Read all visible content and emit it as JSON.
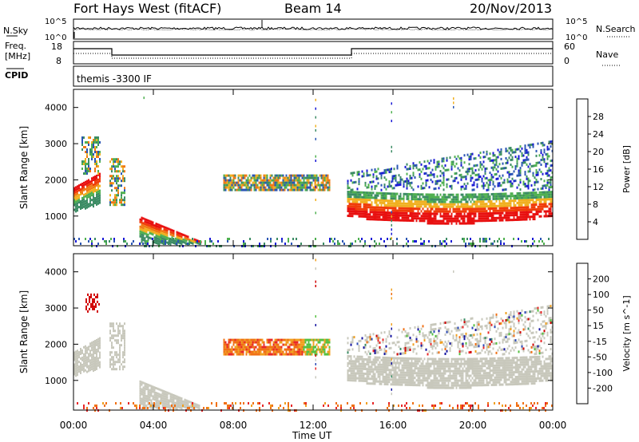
{
  "header": {
    "station": "Fort Hays West (fitACF)",
    "beam": "Beam 14",
    "date": "20/Nov/2013"
  },
  "panels": {
    "nsky": {
      "left_label": "N.Sky",
      "right_label": "N.Search",
      "tick_top": "10^5",
      "tick_bottom": "10^0"
    },
    "freq": {
      "left_label_1": "Freq.",
      "left_label_2": "[MHz]",
      "right_label": "Nave",
      "left_ticks": [
        "18",
        "8"
      ],
      "right_ticks": [
        "60",
        "0"
      ]
    },
    "cpid": {
      "label": "CPID",
      "program": "themis -3300 IF"
    }
  },
  "colors": {
    "power": [
      "#1a1ad6",
      "#2a55b4",
      "#3c8c64",
      "#4fb050",
      "#f0b020",
      "#f07a14",
      "#f03c0a",
      "#e81010"
    ],
    "velocity": [
      "#1414a0",
      "#2c4ab6",
      "#3c8c64",
      "#55c040",
      "#c8c8bc",
      "#f0a020",
      "#f07014",
      "#e82828",
      "#d00000"
    ]
  },
  "chart_data": [
    {
      "type": "heatmap",
      "title": "Power",
      "xlabel": "Time UT",
      "ylabel": "Slant Range [km]",
      "x_ticks": [
        "00:00",
        "04:00",
        "08:00",
        "12:00",
        "16:00",
        "20:00",
        "00:00"
      ],
      "y_ticks": [
        1000,
        2000,
        3000,
        4000
      ],
      "xlim_hours": [
        0,
        24
      ],
      "ylim_km": [
        180,
        4500
      ],
      "colorbar": {
        "label": "Power [dB]",
        "ticks": [
          4,
          8,
          12,
          16,
          20,
          24,
          28
        ]
      },
      "regions": [
        {
          "from_h": 0.0,
          "to_h": 1.3,
          "km_low": 1150,
          "km_high": 2050,
          "level": "high"
        },
        {
          "from_h": 0.4,
          "to_h": 1.3,
          "km_low": 2200,
          "km_high": 3200,
          "level": "medium"
        },
        {
          "from_h": 1.8,
          "to_h": 2.6,
          "km_low": 1300,
          "km_high": 2600,
          "level": "medium"
        },
        {
          "from_h": 3.3,
          "to_h": 6.4,
          "km_low": 250,
          "km_high": 1000,
          "level": "high"
        },
        {
          "from_h": 7.5,
          "to_h": 12.8,
          "km_low": 1750,
          "km_high": 2150,
          "level": "medium"
        },
        {
          "from_h": 13.7,
          "to_h": 24.0,
          "km_low": 850,
          "km_high": 1800,
          "level": "high"
        },
        {
          "from_h": 13.7,
          "to_h": 24.0,
          "km_low": 1800,
          "km_high": 3100,
          "level": "low"
        },
        {
          "from_h": 0.0,
          "to_h": 24.0,
          "km_low": 200,
          "km_high": 400,
          "level": "low"
        }
      ]
    },
    {
      "type": "heatmap",
      "title": "Velocity",
      "xlabel": "Time UT",
      "ylabel": "Slant Range [km]",
      "x_ticks": [
        "00:00",
        "04:00",
        "08:00",
        "12:00",
        "16:00",
        "20:00",
        "00:00"
      ],
      "y_ticks": [
        1000,
        2000,
        3000,
        4000
      ],
      "xlim_hours": [
        0,
        24
      ],
      "ylim_km": [
        180,
        4500
      ],
      "colorbar": {
        "label": "Velocity [m s^-1]",
        "ticks": [
          200,
          100,
          50,
          15,
          -15,
          -50,
          -100,
          -200
        ]
      },
      "regions": [
        {
          "from_h": 0.0,
          "to_h": 1.3,
          "km_low": 1150,
          "km_high": 2050,
          "level": "ground"
        },
        {
          "from_h": 0.6,
          "to_h": 1.3,
          "km_low": 2900,
          "km_high": 3400,
          "level": "negative"
        },
        {
          "from_h": 1.8,
          "to_h": 2.6,
          "km_low": 1300,
          "km_high": 2600,
          "level": "ground"
        },
        {
          "from_h": 3.3,
          "to_h": 6.4,
          "km_low": 250,
          "km_high": 1000,
          "level": "ground"
        },
        {
          "from_h": 7.5,
          "to_h": 12.8,
          "km_low": 1750,
          "km_high": 2150,
          "level": "negative"
        },
        {
          "from_h": 13.7,
          "to_h": 24.0,
          "km_low": 850,
          "km_high": 1800,
          "level": "ground"
        },
        {
          "from_h": 13.7,
          "to_h": 24.0,
          "km_low": 1800,
          "km_high": 3100,
          "level": "mixed"
        },
        {
          "from_h": 0.0,
          "to_h": 24.0,
          "km_low": 200,
          "km_high": 400,
          "level": "negative"
        }
      ]
    }
  ]
}
